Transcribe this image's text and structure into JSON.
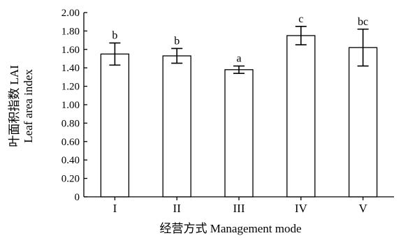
{
  "chart_data": {
    "type": "bar",
    "title": "",
    "xlabel": "经营方式 Management mode",
    "ylabel": [
      "叶面积指数 LAI",
      "Leaf area index"
    ],
    "ylim": [
      0,
      2.0
    ],
    "yticks": [
      "0",
      "0.20",
      "0.40",
      "0.60",
      "0.80",
      "1.00",
      "1.20",
      "1.40",
      "1.60",
      "1.80",
      "2.00"
    ],
    "categories": [
      "I",
      "II",
      "III",
      "IV",
      "V"
    ],
    "values": [
      1.55,
      1.53,
      1.38,
      1.75,
      1.62
    ],
    "errors": [
      0.12,
      0.08,
      0.04,
      0.1,
      0.2
    ],
    "significance": [
      "b",
      "b",
      "a",
      "c",
      "bc"
    ],
    "grid": false,
    "legend": "none"
  }
}
